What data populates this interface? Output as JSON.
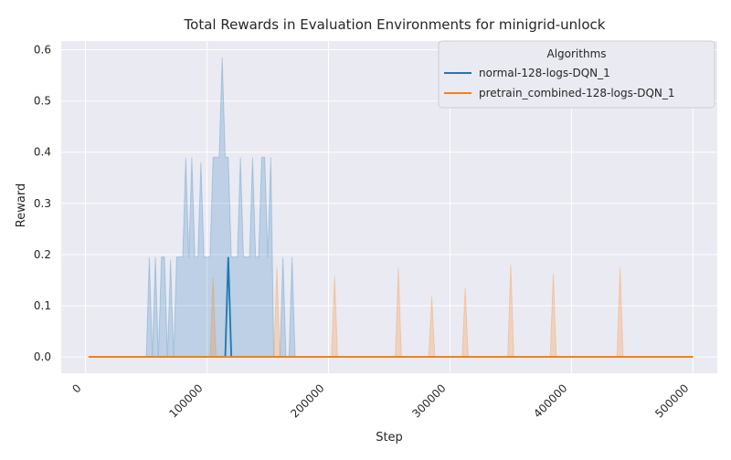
{
  "chart_data": {
    "type": "line",
    "title": "Total Rewards in Evaluation Environments for minigrid-unlock",
    "xlabel": "Step",
    "ylabel": "Reward",
    "xlim": [
      -20000,
      520000
    ],
    "ylim": [
      -0.032,
      0.617
    ],
    "x_ticks": [
      0,
      100000,
      200000,
      300000,
      400000,
      500000
    ],
    "x_tick_labels": [
      "0",
      "100000",
      "200000",
      "300000",
      "400000",
      "500000"
    ],
    "y_ticks": [
      0.0,
      0.1,
      0.2,
      0.3,
      0.4,
      0.5,
      0.6
    ],
    "y_tick_labels": [
      "0.0",
      "0.1",
      "0.2",
      "0.3",
      "0.4",
      "0.5",
      "0.6"
    ],
    "grid": true,
    "background": "#eaeaf2",
    "legend": {
      "title": "Algorithms",
      "placement": "top-right"
    },
    "series": [
      {
        "name": "normal-128-logs-DQN_1",
        "color": "#1f77b4",
        "x": [
          2500,
          115000,
          117500,
          120000,
          500000
        ],
        "y": [
          0,
          0,
          0.195,
          0,
          0
        ],
        "band_upper": {
          "x": [
            2500,
            50000,
            52500,
            55000,
            57500,
            60000,
            62500,
            65000,
            67500,
            70000,
            72500,
            75000,
            77500,
            80000,
            82500,
            85000,
            87500,
            90000,
            92500,
            95000,
            97500,
            100000,
            102500,
            105000,
            107500,
            110000,
            112500,
            115000,
            117500,
            120000,
            122500,
            125000,
            127500,
            130000,
            132500,
            135000,
            137500,
            140000,
            142500,
            145000,
            147500,
            150000,
            152500,
            155000,
            157500,
            160000,
            162500,
            165000,
            167500,
            170000,
            172500,
            175000,
            500000
          ],
          "y": [
            0,
            0,
            0.195,
            0,
            0.195,
            0,
            0.195,
            0.195,
            0,
            0.19,
            0,
            0.195,
            0.195,
            0.195,
            0.39,
            0.195,
            0.39,
            0.195,
            0.195,
            0.38,
            0.195,
            0.195,
            0.195,
            0.39,
            0.39,
            0.39,
            0.585,
            0.39,
            0.39,
            0.195,
            0.195,
            0.195,
            0.39,
            0.195,
            0.195,
            0.195,
            0.39,
            0.195,
            0.195,
            0.39,
            0.39,
            0.195,
            0.39,
            0,
            0,
            0,
            0.195,
            0,
            0,
            0.195,
            0,
            0,
            0
          ]
        },
        "band_lower": {
          "x": [
            2500,
            500000
          ],
          "y": [
            0,
            0
          ]
        }
      },
      {
        "name": "pretrain_combined-128-logs-DQN_1",
        "color": "#ff7f0e",
        "x": [
          2500,
          500000
        ],
        "y": [
          0,
          0
        ],
        "band_upper": {
          "x": [
            2500,
            102500,
            105000,
            107500,
            155000,
            157500,
            160000,
            202500,
            205000,
            207500,
            255000,
            257500,
            260000,
            282500,
            285000,
            287500,
            310000,
            312500,
            315000,
            347500,
            350000,
            352500,
            382500,
            385000,
            387500,
            437500,
            440000,
            442500,
            500000
          ],
          "y": [
            0,
            0,
            0.155,
            0,
            0,
            0.175,
            0,
            0,
            0.158,
            0,
            0,
            0.175,
            0,
            0,
            0.118,
            0,
            0,
            0.135,
            0,
            0,
            0.18,
            0,
            0,
            0.163,
            0,
            0,
            0.175,
            0,
            0
          ]
        },
        "band_lower": {
          "x": [
            2500,
            500000
          ],
          "y": [
            0,
            0
          ]
        }
      }
    ]
  }
}
